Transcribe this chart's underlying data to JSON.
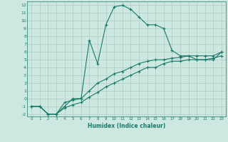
{
  "xlabel": "Humidex (Indice chaleur)",
  "background_color": "#cce8e0",
  "grid_color": "#aaccC4",
  "line_color": "#1a7a6a",
  "xlim": [
    -0.5,
    23.5
  ],
  "ylim": [
    -2.3,
    12.5
  ],
  "xticks": [
    0,
    1,
    2,
    3,
    4,
    5,
    6,
    7,
    8,
    9,
    10,
    11,
    12,
    13,
    14,
    15,
    16,
    17,
    18,
    19,
    20,
    21,
    22,
    23
  ],
  "yticks": [
    -2,
    -1,
    0,
    1,
    2,
    3,
    4,
    5,
    6,
    7,
    8,
    9,
    10,
    11,
    12
  ],
  "line_peak_x": [
    0,
    1,
    2,
    3,
    4,
    5,
    6,
    7,
    8,
    9,
    10,
    11,
    12,
    13,
    14,
    15,
    16,
    17,
    18,
    19,
    20,
    21,
    22,
    23
  ],
  "line_peak_y": [
    -1,
    -1,
    -2,
    -2,
    -1,
    0,
    0,
    7.5,
    4.5,
    9.5,
    11.8,
    12,
    11.5,
    10.5,
    9.5,
    9.5,
    9.0,
    6.2,
    5.5,
    5.5,
    5,
    5,
    5,
    6.0
  ],
  "line_mid_x": [
    0,
    1,
    2,
    3,
    4,
    5,
    6,
    7,
    8,
    9,
    10,
    11,
    12,
    13,
    14,
    15,
    16,
    17,
    18,
    19,
    20,
    21,
    22,
    23
  ],
  "line_mid_y": [
    -1,
    -1,
    -2,
    -2,
    -0.5,
    -0.2,
    0,
    1.0,
    2,
    2.5,
    3.2,
    3.5,
    4.0,
    4.5,
    4.8,
    5.0,
    5.0,
    5.2,
    5.3,
    5.5,
    5.5,
    5.5,
    5.5,
    6.0
  ],
  "line_low_x": [
    0,
    1,
    2,
    3,
    4,
    5,
    6,
    7,
    8,
    9,
    10,
    11,
    12,
    13,
    14,
    15,
    16,
    17,
    18,
    19,
    20,
    21,
    22,
    23
  ],
  "line_low_y": [
    -1,
    -1,
    -2,
    -2,
    -1.2,
    -0.8,
    -0.5,
    0.2,
    0.8,
    1.5,
    2.0,
    2.5,
    3.0,
    3.5,
    4.0,
    4.0,
    4.5,
    4.8,
    4.8,
    5.0,
    5.0,
    5.0,
    5.2,
    5.5
  ]
}
